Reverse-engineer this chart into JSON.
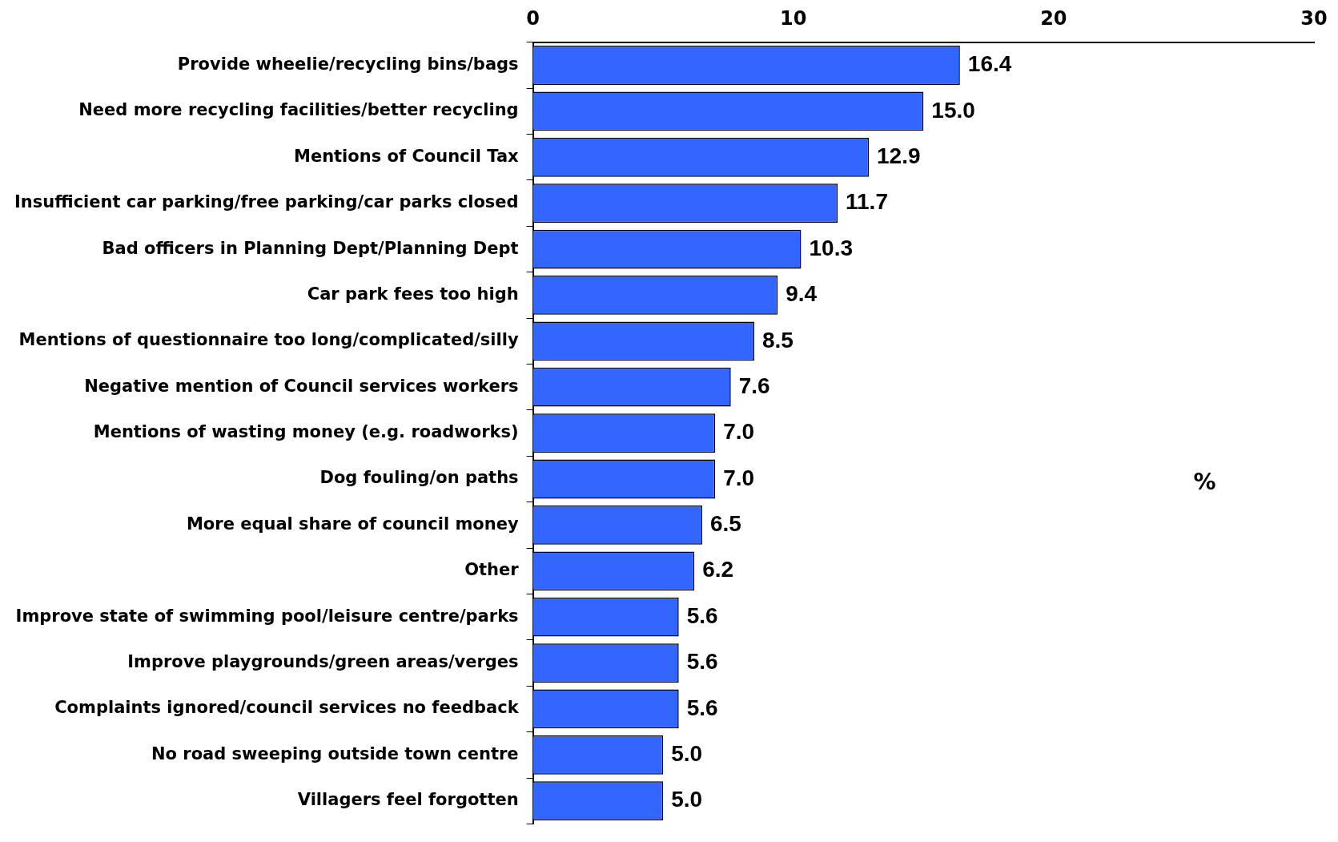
{
  "chart_data": {
    "type": "bar",
    "orientation": "horizontal",
    "xlabel": "%",
    "categories": [
      "Provide wheelie/recycling bins/bags",
      "Need more recycling facilities/better recycling",
      "Mentions of Council Tax",
      "Insufficient car parking/free parking/car parks closed",
      "Bad officers in Planning Dept/Planning Dept",
      "Car park fees too high",
      "Mentions of questionnaire too long/complicated/silly",
      "Negative mention of Council services workers",
      "Mentions of wasting money (e.g. roadworks)",
      "Dog fouling/on paths",
      "More equal share of council money",
      "Other",
      "Improve state of swimming pool/leisure centre/parks",
      "Improve playgrounds/green areas/verges",
      "Complaints ignored/council services no feedback",
      "No road sweeping outside town centre",
      "Villagers feel forgotten"
    ],
    "values": [
      16.4,
      15.0,
      12.9,
      11.7,
      10.3,
      9.4,
      8.5,
      7.6,
      7.0,
      7.0,
      6.5,
      6.2,
      5.6,
      5.6,
      5.6,
      5.0,
      5.0
    ],
    "value_labels": [
      "16.4",
      "15.0",
      "12.9",
      "11.7",
      "10.3",
      "9.4",
      "8.5",
      "7.6",
      "7.0",
      "7.0",
      "6.5",
      "6.2",
      "5.6",
      "5.6",
      "5.6",
      "5.0",
      "5.0"
    ],
    "color": "#3366ff",
    "xlim": [
      0,
      30
    ],
    "xticks": [
      0,
      10,
      20,
      30
    ],
    "grid": false,
    "legend": false
  }
}
